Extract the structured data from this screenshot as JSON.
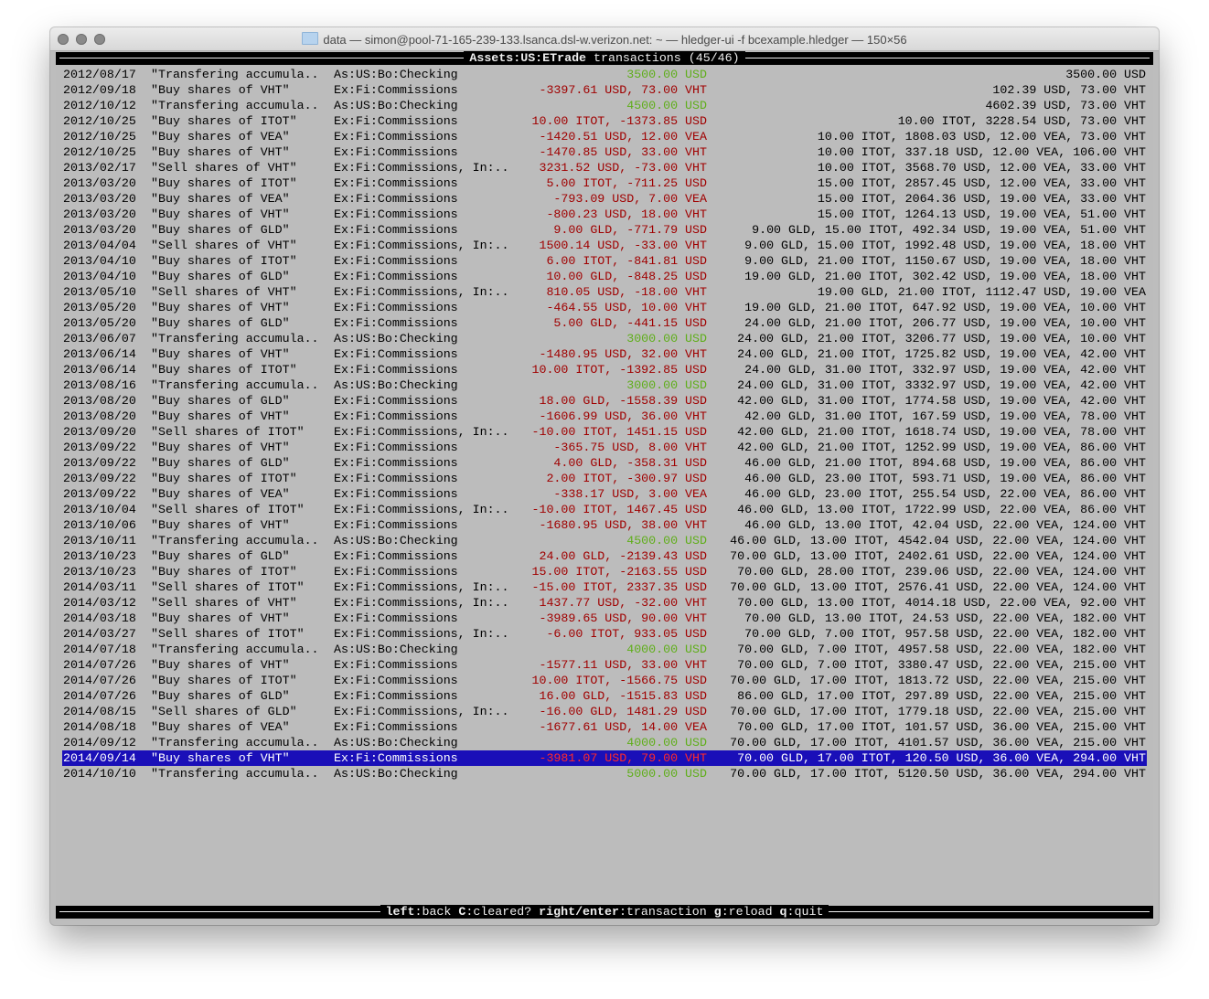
{
  "window": {
    "title": "data — simon@pool-71-165-239-133.lsanca.dsl-w.verizon.net: ~ — hledger-ui -f bcexample.hledger — 150×56"
  },
  "header": {
    "account": "Assets:US:ETrade",
    "label": "transactions",
    "position": "(45/46)"
  },
  "selected_index": 44,
  "colors": {
    "positive": "#5fae1a",
    "negative": "#a00000",
    "selection": "#1a0fb8",
    "background": "#bcbcbc"
  },
  "rows": [
    [
      "2012/08/17",
      "\"Transfering accumula..",
      "As:US:Bo:Checking",
      "3500.00 USD",
      "3500.00 USD",
      "pos"
    ],
    [
      "2012/09/18",
      "\"Buy shares of VHT\"",
      "Ex:Fi:Commissions",
      "-3397.61 USD, 73.00 VHT",
      "102.39 USD, 73.00 VHT",
      "neg"
    ],
    [
      "2012/10/12",
      "\"Transfering accumula..",
      "As:US:Bo:Checking",
      "4500.00 USD",
      "4602.39 USD, 73.00 VHT",
      "pos"
    ],
    [
      "2012/10/25",
      "\"Buy shares of ITOT\"",
      "Ex:Fi:Commissions",
      "10.00 ITOT, -1373.85 USD",
      "10.00 ITOT, 3228.54 USD, 73.00 VHT",
      "neg"
    ],
    [
      "2012/10/25",
      "\"Buy shares of VEA\"",
      "Ex:Fi:Commissions",
      "-1420.51 USD, 12.00 VEA",
      "10.00 ITOT, 1808.03 USD, 12.00 VEA, 73.00 VHT",
      "neg"
    ],
    [
      "2012/10/25",
      "\"Buy shares of VHT\"",
      "Ex:Fi:Commissions",
      "-1470.85 USD, 33.00 VHT",
      "10.00 ITOT, 337.18 USD, 12.00 VEA, 106.00 VHT",
      "neg"
    ],
    [
      "2013/02/17",
      "\"Sell shares of VHT\"",
      "Ex:Fi:Commissions, In:..",
      "3231.52 USD, -73.00 VHT",
      "10.00 ITOT, 3568.70 USD, 12.00 VEA, 33.00 VHT",
      "neg"
    ],
    [
      "2013/03/20",
      "\"Buy shares of ITOT\"",
      "Ex:Fi:Commissions",
      "5.00 ITOT, -711.25 USD",
      "15.00 ITOT, 2857.45 USD, 12.00 VEA, 33.00 VHT",
      "neg"
    ],
    [
      "2013/03/20",
      "\"Buy shares of VEA\"",
      "Ex:Fi:Commissions",
      "-793.09 USD, 7.00 VEA",
      "15.00 ITOT, 2064.36 USD, 19.00 VEA, 33.00 VHT",
      "neg"
    ],
    [
      "2013/03/20",
      "\"Buy shares of VHT\"",
      "Ex:Fi:Commissions",
      "-800.23 USD, 18.00 VHT",
      "15.00 ITOT, 1264.13 USD, 19.00 VEA, 51.00 VHT",
      "neg"
    ],
    [
      "2013/03/20",
      "\"Buy shares of GLD\"",
      "Ex:Fi:Commissions",
      "9.00 GLD, -771.79 USD",
      "9.00 GLD, 15.00 ITOT, 492.34 USD, 19.00 VEA, 51.00 VHT",
      "neg"
    ],
    [
      "2013/04/04",
      "\"Sell shares of VHT\"",
      "Ex:Fi:Commissions, In:..",
      "1500.14 USD, -33.00 VHT",
      "9.00 GLD, 15.00 ITOT, 1992.48 USD, 19.00 VEA, 18.00 VHT",
      "neg"
    ],
    [
      "2013/04/10",
      "\"Buy shares of ITOT\"",
      "Ex:Fi:Commissions",
      "6.00 ITOT, -841.81 USD",
      "9.00 GLD, 21.00 ITOT, 1150.67 USD, 19.00 VEA, 18.00 VHT",
      "neg"
    ],
    [
      "2013/04/10",
      "\"Buy shares of GLD\"",
      "Ex:Fi:Commissions",
      "10.00 GLD, -848.25 USD",
      "19.00 GLD, 21.00 ITOT, 302.42 USD, 19.00 VEA, 18.00 VHT",
      "neg"
    ],
    [
      "2013/05/10",
      "\"Sell shares of VHT\"",
      "Ex:Fi:Commissions, In:..",
      "810.05 USD, -18.00 VHT",
      "19.00 GLD, 21.00 ITOT, 1112.47 USD, 19.00 VEA",
      "neg"
    ],
    [
      "2013/05/20",
      "\"Buy shares of VHT\"",
      "Ex:Fi:Commissions",
      "-464.55 USD, 10.00 VHT",
      "19.00 GLD, 21.00 ITOT, 647.92 USD, 19.00 VEA, 10.00 VHT",
      "neg"
    ],
    [
      "2013/05/20",
      "\"Buy shares of GLD\"",
      "Ex:Fi:Commissions",
      "5.00 GLD, -441.15 USD",
      "24.00 GLD, 21.00 ITOT, 206.77 USD, 19.00 VEA, 10.00 VHT",
      "neg"
    ],
    [
      "2013/06/07",
      "\"Transfering accumula..",
      "As:US:Bo:Checking",
      "3000.00 USD",
      "24.00 GLD, 21.00 ITOT, 3206.77 USD, 19.00 VEA, 10.00 VHT",
      "pos"
    ],
    [
      "2013/06/14",
      "\"Buy shares of VHT\"",
      "Ex:Fi:Commissions",
      "-1480.95 USD, 32.00 VHT",
      "24.00 GLD, 21.00 ITOT, 1725.82 USD, 19.00 VEA, 42.00 VHT",
      "neg"
    ],
    [
      "2013/06/14",
      "\"Buy shares of ITOT\"",
      "Ex:Fi:Commissions",
      "10.00 ITOT, -1392.85 USD",
      "24.00 GLD, 31.00 ITOT, 332.97 USD, 19.00 VEA, 42.00 VHT",
      "neg"
    ],
    [
      "2013/08/16",
      "\"Transfering accumula..",
      "As:US:Bo:Checking",
      "3000.00 USD",
      "24.00 GLD, 31.00 ITOT, 3332.97 USD, 19.00 VEA, 42.00 VHT",
      "pos"
    ],
    [
      "2013/08/20",
      "\"Buy shares of GLD\"",
      "Ex:Fi:Commissions",
      "18.00 GLD, -1558.39 USD",
      "42.00 GLD, 31.00 ITOT, 1774.58 USD, 19.00 VEA, 42.00 VHT",
      "neg"
    ],
    [
      "2013/08/20",
      "\"Buy shares of VHT\"",
      "Ex:Fi:Commissions",
      "-1606.99 USD, 36.00 VHT",
      "42.00 GLD, 31.00 ITOT, 167.59 USD, 19.00 VEA, 78.00 VHT",
      "neg"
    ],
    [
      "2013/09/20",
      "\"Sell shares of ITOT\"",
      "Ex:Fi:Commissions, In:..",
      "-10.00 ITOT, 1451.15 USD",
      "42.00 GLD, 21.00 ITOT, 1618.74 USD, 19.00 VEA, 78.00 VHT",
      "neg"
    ],
    [
      "2013/09/22",
      "\"Buy shares of VHT\"",
      "Ex:Fi:Commissions",
      "-365.75 USD, 8.00 VHT",
      "42.00 GLD, 21.00 ITOT, 1252.99 USD, 19.00 VEA, 86.00 VHT",
      "neg"
    ],
    [
      "2013/09/22",
      "\"Buy shares of GLD\"",
      "Ex:Fi:Commissions",
      "4.00 GLD, -358.31 USD",
      "46.00 GLD, 21.00 ITOT, 894.68 USD, 19.00 VEA, 86.00 VHT",
      "neg"
    ],
    [
      "2013/09/22",
      "\"Buy shares of ITOT\"",
      "Ex:Fi:Commissions",
      "2.00 ITOT, -300.97 USD",
      "46.00 GLD, 23.00 ITOT, 593.71 USD, 19.00 VEA, 86.00 VHT",
      "neg"
    ],
    [
      "2013/09/22",
      "\"Buy shares of VEA\"",
      "Ex:Fi:Commissions",
      "-338.17 USD, 3.00 VEA",
      "46.00 GLD, 23.00 ITOT, 255.54 USD, 22.00 VEA, 86.00 VHT",
      "neg"
    ],
    [
      "2013/10/04",
      "\"Sell shares of ITOT\"",
      "Ex:Fi:Commissions, In:..",
      "-10.00 ITOT, 1467.45 USD",
      "46.00 GLD, 13.00 ITOT, 1722.99 USD, 22.00 VEA, 86.00 VHT",
      "neg"
    ],
    [
      "2013/10/06",
      "\"Buy shares of VHT\"",
      "Ex:Fi:Commissions",
      "-1680.95 USD, 38.00 VHT",
      "46.00 GLD, 13.00 ITOT, 42.04 USD, 22.00 VEA, 124.00 VHT",
      "neg"
    ],
    [
      "2013/10/11",
      "\"Transfering accumula..",
      "As:US:Bo:Checking",
      "4500.00 USD",
      "46.00 GLD, 13.00 ITOT, 4542.04 USD, 22.00 VEA, 124.00 VHT",
      "pos"
    ],
    [
      "2013/10/23",
      "\"Buy shares of GLD\"",
      "Ex:Fi:Commissions",
      "24.00 GLD, -2139.43 USD",
      "70.00 GLD, 13.00 ITOT, 2402.61 USD, 22.00 VEA, 124.00 VHT",
      "neg"
    ],
    [
      "2013/10/23",
      "\"Buy shares of ITOT\"",
      "Ex:Fi:Commissions",
      "15.00 ITOT, -2163.55 USD",
      "70.00 GLD, 28.00 ITOT, 239.06 USD, 22.00 VEA, 124.00 VHT",
      "neg"
    ],
    [
      "2014/03/11",
      "\"Sell shares of ITOT\"",
      "Ex:Fi:Commissions, In:..",
      "-15.00 ITOT, 2337.35 USD",
      "70.00 GLD, 13.00 ITOT, 2576.41 USD, 22.00 VEA, 124.00 VHT",
      "neg"
    ],
    [
      "2014/03/12",
      "\"Sell shares of VHT\"",
      "Ex:Fi:Commissions, In:..",
      "1437.77 USD, -32.00 VHT",
      "70.00 GLD, 13.00 ITOT, 4014.18 USD, 22.00 VEA, 92.00 VHT",
      "neg"
    ],
    [
      "2014/03/18",
      "\"Buy shares of VHT\"",
      "Ex:Fi:Commissions",
      "-3989.65 USD, 90.00 VHT",
      "70.00 GLD, 13.00 ITOT, 24.53 USD, 22.00 VEA, 182.00 VHT",
      "neg"
    ],
    [
      "2014/03/27",
      "\"Sell shares of ITOT\"",
      "Ex:Fi:Commissions, In:..",
      "-6.00 ITOT, 933.05 USD",
      "70.00 GLD, 7.00 ITOT, 957.58 USD, 22.00 VEA, 182.00 VHT",
      "neg"
    ],
    [
      "2014/07/18",
      "\"Transfering accumula..",
      "As:US:Bo:Checking",
      "4000.00 USD",
      "70.00 GLD, 7.00 ITOT, 4957.58 USD, 22.00 VEA, 182.00 VHT",
      "pos"
    ],
    [
      "2014/07/26",
      "\"Buy shares of VHT\"",
      "Ex:Fi:Commissions",
      "-1577.11 USD, 33.00 VHT",
      "70.00 GLD, 7.00 ITOT, 3380.47 USD, 22.00 VEA, 215.00 VHT",
      "neg"
    ],
    [
      "2014/07/26",
      "\"Buy shares of ITOT\"",
      "Ex:Fi:Commissions",
      "10.00 ITOT, -1566.75 USD",
      "70.00 GLD, 17.00 ITOT, 1813.72 USD, 22.00 VEA, 215.00 VHT",
      "neg"
    ],
    [
      "2014/07/26",
      "\"Buy shares of GLD\"",
      "Ex:Fi:Commissions",
      "16.00 GLD, -1515.83 USD",
      "86.00 GLD, 17.00 ITOT, 297.89 USD, 22.00 VEA, 215.00 VHT",
      "neg"
    ],
    [
      "2014/08/15",
      "\"Sell shares of GLD\"",
      "Ex:Fi:Commissions, In:..",
      "-16.00 GLD, 1481.29 USD",
      "70.00 GLD, 17.00 ITOT, 1779.18 USD, 22.00 VEA, 215.00 VHT",
      "neg"
    ],
    [
      "2014/08/18",
      "\"Buy shares of VEA\"",
      "Ex:Fi:Commissions",
      "-1677.61 USD, 14.00 VEA",
      "70.00 GLD, 17.00 ITOT, 101.57 USD, 36.00 VEA, 215.00 VHT",
      "neg"
    ],
    [
      "2014/09/12",
      "\"Transfering accumula..",
      "As:US:Bo:Checking",
      "4000.00 USD",
      "70.00 GLD, 17.00 ITOT, 4101.57 USD, 36.00 VEA, 215.00 VHT",
      "pos"
    ],
    [
      "2014/09/14",
      "\"Buy shares of VHT\"",
      "Ex:Fi:Commissions",
      "-3981.07 USD, 79.00 VHT",
      "70.00 GLD, 17.00 ITOT, 120.50 USD, 36.00 VEA, 294.00 VHT",
      "neg"
    ],
    [
      "2014/10/10",
      "\"Transfering accumula..",
      "As:US:Bo:Checking",
      "5000.00 USD",
      "70.00 GLD, 17.00 ITOT, 5120.50 USD, 36.00 VEA, 294.00 VHT",
      "pos"
    ]
  ],
  "footer": {
    "keys": [
      {
        "key": "left",
        "action": "back"
      },
      {
        "key": "C",
        "action": "cleared?"
      },
      {
        "key": "right/enter",
        "action": "transaction"
      },
      {
        "key": "g",
        "action": "reload"
      },
      {
        "key": "q",
        "action": "quit"
      }
    ]
  }
}
